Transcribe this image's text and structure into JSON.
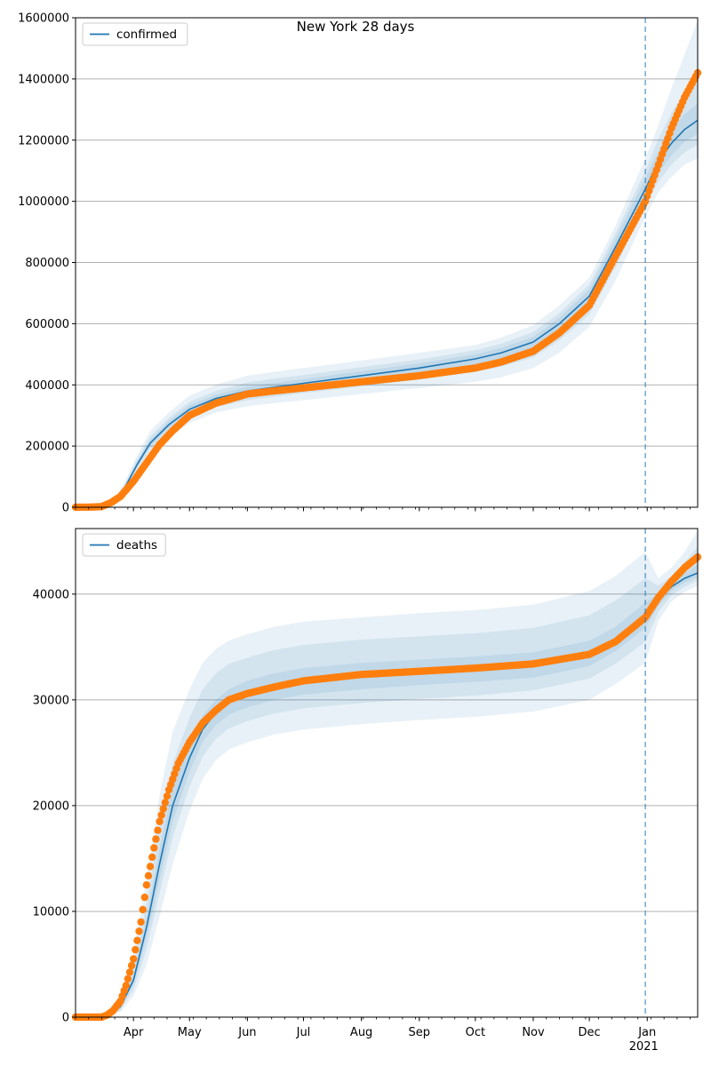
{
  "figure_title": "New York 28 days",
  "colors": {
    "model_line": "#1f77b4",
    "band": "#1f77b4",
    "observed": "#ff7f0e",
    "forecast_start_line": "#1f77b4",
    "grid": "#b0b0b0"
  },
  "x_axis": {
    "tick_labels": [
      "Apr",
      "May",
      "Jun",
      "Jul",
      "Aug",
      "Sep",
      "Oct",
      "Nov",
      "Dec",
      "Jan"
    ],
    "tick_dates": [
      "2020-04-01",
      "2020-05-01",
      "2020-06-01",
      "2020-07-01",
      "2020-08-01",
      "2020-09-01",
      "2020-10-01",
      "2020-11-01",
      "2020-12-01",
      "2021-01-01"
    ],
    "year_label": "2021",
    "range": [
      "2020-03-01",
      "2021-01-28"
    ],
    "forecast_start": "2020-12-31"
  },
  "chart_data": [
    {
      "type": "line",
      "legend": [
        "confirmed"
      ],
      "legend_position": "top-left",
      "grid": "horizontal",
      "ylim": [
        0,
        1600000
      ],
      "yticks": [
        0,
        200000,
        400000,
        600000,
        800000,
        1000000,
        1200000,
        1400000,
        1600000
      ],
      "series": [
        {
          "name": "confirmed",
          "role": "model",
          "x": [
            "2020-03-01",
            "2020-03-12",
            "2020-03-20",
            "2020-03-27",
            "2020-04-03",
            "2020-04-10",
            "2020-04-20",
            "2020-05-01",
            "2020-05-15",
            "2020-06-01",
            "2020-06-15",
            "2020-07-01",
            "2020-08-01",
            "2020-09-01",
            "2020-10-01",
            "2020-10-15",
            "2020-11-01",
            "2020-11-15",
            "2020-12-01",
            "2020-12-15",
            "2020-12-31",
            "2021-01-07",
            "2021-01-14",
            "2021-01-21",
            "2021-01-28"
          ],
          "y": [
            0,
            1000,
            10000,
            60000,
            140000,
            210000,
            270000,
            320000,
            355000,
            380000,
            392000,
            405000,
            430000,
            455000,
            485000,
            505000,
            540000,
            600000,
            690000,
            850000,
            1040000,
            1130000,
            1190000,
            1235000,
            1265000
          ],
          "bands": [
            {
              "lower": [
                0,
                0,
                8000,
                50000,
                115000,
                175000,
                230000,
                275000,
                310000,
                330000,
                340000,
                350000,
                370000,
                390000,
                410000,
                425000,
                455000,
                505000,
                590000,
                740000,
                950000,
                1030000,
                1080000,
                1120000,
                1140000
              ],
              "upper": [
                0,
                2000,
                12000,
                80000,
                170000,
                250000,
                310000,
                365000,
                400000,
                430000,
                442000,
                455000,
                480000,
                505000,
                530000,
                555000,
                595000,
                660000,
                750000,
                920000,
                1140000,
                1250000,
                1370000,
                1480000,
                1590000
              ]
            },
            {
              "lower": [
                0,
                0,
                9000,
                55000,
                125000,
                190000,
                245000,
                292000,
                327000,
                350000,
                361000,
                373000,
                395000,
                418000,
                443000,
                460000,
                490000,
                545000,
                630000,
                785000,
                985000,
                1065000,
                1120000,
                1160000,
                1185000
              ],
              "upper": [
                0,
                1500,
                11000,
                70000,
                158000,
                232000,
                292000,
                345000,
                380000,
                408000,
                420000,
                432000,
                458000,
                483000,
                513000,
                535000,
                573000,
                635000,
                728000,
                895000,
                1100000,
                1205000,
                1290000,
                1360000,
                1420000
              ]
            },
            {
              "lower": [
                0,
                500,
                9500,
                58000,
                132000,
                200000,
                258000,
                306000,
                341000,
                365000,
                377000,
                390000,
                414000,
                438000,
                465000,
                484000,
                516000,
                572000,
                660000,
                815000,
                1010000,
                1095000,
                1150000,
                1195000,
                1220000
              ],
              "upper": [
                0,
                1200,
                10500,
                65000,
                150000,
                220000,
                282000,
                333000,
                368000,
                394000,
                406000,
                419000,
                445000,
                470000,
                500000,
                521000,
                557000,
                620000,
                712000,
                877000,
                1075000,
                1165000,
                1235000,
                1285000,
                1320000
              ]
            }
          ]
        },
        {
          "name": "observed",
          "role": "observed",
          "x": [
            "2020-03-01",
            "2020-03-10",
            "2020-03-15",
            "2020-03-20",
            "2020-03-25",
            "2020-04-01",
            "2020-04-08",
            "2020-04-15",
            "2020-04-22",
            "2020-05-01",
            "2020-05-15",
            "2020-06-01",
            "2020-06-15",
            "2020-07-01",
            "2020-08-01",
            "2020-09-01",
            "2020-10-01",
            "2020-10-15",
            "2020-11-01",
            "2020-11-15",
            "2020-12-01",
            "2020-12-15",
            "2020-12-31",
            "2021-01-07",
            "2021-01-14",
            "2021-01-21",
            "2021-01-28"
          ],
          "y": [
            0,
            500,
            2000,
            15000,
            35000,
            85000,
            145000,
            205000,
            250000,
            300000,
            340000,
            370000,
            380000,
            390000,
            410000,
            430000,
            455000,
            475000,
            510000,
            570000,
            660000,
            820000,
            1000000,
            1120000,
            1240000,
            1340000,
            1420000
          ]
        }
      ]
    },
    {
      "type": "line",
      "legend": [
        "deaths"
      ],
      "legend_position": "top-left",
      "grid": "horizontal",
      "ylim": [
        0,
        46200
      ],
      "yticks": [
        0,
        10000,
        20000,
        30000,
        40000
      ],
      "series": [
        {
          "name": "deaths",
          "role": "model",
          "x": [
            "2020-03-01",
            "2020-03-18",
            "2020-03-25",
            "2020-04-01",
            "2020-04-08",
            "2020-04-15",
            "2020-04-22",
            "2020-05-01",
            "2020-05-08",
            "2020-05-15",
            "2020-05-22",
            "2020-06-01",
            "2020-06-15",
            "2020-07-01",
            "2020-08-01",
            "2020-09-01",
            "2020-10-01",
            "2020-11-01",
            "2020-12-01",
            "2020-12-15",
            "2020-12-31",
            "2021-01-07",
            "2021-01-14",
            "2021-01-21",
            "2021-01-28"
          ],
          "y": [
            0,
            200,
            1000,
            3500,
            8500,
            14500,
            20000,
            24500,
            27200,
            28800,
            29800,
            30600,
            31300,
            31800,
            32300,
            32600,
            32900,
            33300,
            34400,
            35700,
            38000,
            39500,
            40700,
            41500,
            42000
          ],
          "bands": [
            {
              "lower": [
                0,
                100,
                500,
                2000,
                5000,
                9500,
                14500,
                19500,
                22500,
                24300,
                25300,
                26000,
                26700,
                27200,
                27700,
                28100,
                28400,
                28900,
                30000,
                31500,
                33500,
                37500,
                39300,
                40200,
                40800
              ],
              "upper": [
                0,
                400,
                1800,
                6000,
                13000,
                21000,
                27000,
                31000,
                33500,
                34800,
                35600,
                36200,
                36900,
                37400,
                37800,
                38200,
                38500,
                39000,
                40300,
                41700,
                44000,
                41500,
                42500,
                44000,
                46000
              ]
            },
            {
              "lower": [
                0,
                130,
                650,
                2600,
                6400,
                11700,
                17000,
                21800,
                24600,
                26300,
                27300,
                28000,
                28700,
                29200,
                29700,
                30100,
                30400,
                30900,
                32000,
                33400,
                35500,
                38300,
                39900,
                40700,
                41300
              ],
              "upper": [
                0,
                300,
                1450,
                4700,
                10900,
                18000,
                24000,
                28300,
                31000,
                32500,
                33400,
                34000,
                34700,
                35200,
                35700,
                36000,
                36300,
                36800,
                38000,
                39400,
                41500,
                40800,
                41700,
                43000,
                44500
              ]
            },
            {
              "lower": [
                0,
                160,
                800,
                3100,
                7500,
                13000,
                18500,
                23200,
                26000,
                27600,
                28600,
                29300,
                30000,
                30500,
                31000,
                31400,
                31700,
                32100,
                33200,
                34600,
                36800,
                38900,
                40300,
                41100,
                41600
              ],
              "upper": [
                0,
                250,
                1250,
                4000,
                9500,
                16000,
                21800,
                26000,
                28500,
                30000,
                31000,
                31800,
                32500,
                33000,
                33500,
                33800,
                34100,
                34500,
                35600,
                36900,
                39200,
                40100,
                41100,
                42000,
                42800
              ]
            }
          ]
        },
        {
          "name": "observed",
          "role": "observed",
          "x": [
            "2020-03-01",
            "2020-03-15",
            "2020-03-18",
            "2020-03-21",
            "2020-03-25",
            "2020-03-28",
            "2020-04-01",
            "2020-04-05",
            "2020-04-08",
            "2020-04-12",
            "2020-04-15",
            "2020-04-20",
            "2020-04-25",
            "2020-05-01",
            "2020-05-08",
            "2020-05-15",
            "2020-05-22",
            "2020-06-01",
            "2020-06-15",
            "2020-07-01",
            "2020-08-01",
            "2020-09-01",
            "2020-10-01",
            "2020-11-01",
            "2020-12-01",
            "2020-12-15",
            "2020-12-31",
            "2021-01-07",
            "2021-01-14",
            "2021-01-21",
            "2021-01-28"
          ],
          "y": [
            0,
            0,
            200,
            600,
            1500,
            3000,
            5500,
            9000,
            12500,
            16000,
            18500,
            21500,
            24000,
            26000,
            27800,
            29000,
            30000,
            30600,
            31200,
            31800,
            32400,
            32700,
            33000,
            33400,
            34300,
            35500,
            37800,
            39700,
            41200,
            42500,
            43500
          ]
        }
      ]
    }
  ]
}
